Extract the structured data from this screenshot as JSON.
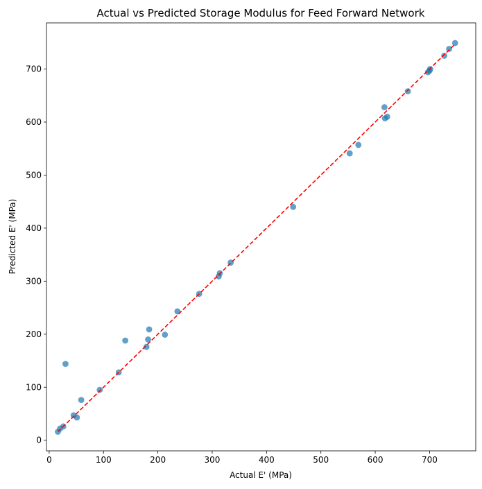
{
  "chart_data": {
    "type": "scatter",
    "title": "Actual vs Predicted Storage Modulus for Feed Forward Network",
    "xlabel": "Actual E' (MPa)",
    "ylabel": "Predicted E' (MPa)",
    "xlim": [
      -5,
      785
    ],
    "ylim": [
      -20,
      787
    ],
    "xticks": [
      0,
      100,
      200,
      300,
      400,
      500,
      600,
      700
    ],
    "yticks": [
      0,
      100,
      200,
      300,
      400,
      500,
      600,
      700
    ],
    "grid": false,
    "points": [
      {
        "x": 16,
        "y": 16
      },
      {
        "x": 20,
        "y": 22
      },
      {
        "x": 26,
        "y": 26
      },
      {
        "x": 30,
        "y": 144
      },
      {
        "x": 45,
        "y": 47
      },
      {
        "x": 51,
        "y": 43
      },
      {
        "x": 59,
        "y": 76
      },
      {
        "x": 93,
        "y": 95
      },
      {
        "x": 128,
        "y": 128
      },
      {
        "x": 140,
        "y": 188
      },
      {
        "x": 179,
        "y": 176
      },
      {
        "x": 182,
        "y": 190
      },
      {
        "x": 184,
        "y": 209
      },
      {
        "x": 213,
        "y": 199
      },
      {
        "x": 236,
        "y": 243
      },
      {
        "x": 276,
        "y": 276
      },
      {
        "x": 312,
        "y": 309
      },
      {
        "x": 314,
        "y": 315
      },
      {
        "x": 334,
        "y": 335
      },
      {
        "x": 449,
        "y": 440
      },
      {
        "x": 553,
        "y": 541
      },
      {
        "x": 569,
        "y": 557
      },
      {
        "x": 617,
        "y": 628
      },
      {
        "x": 618,
        "y": 607
      },
      {
        "x": 622,
        "y": 610
      },
      {
        "x": 660,
        "y": 658
      },
      {
        "x": 697,
        "y": 694
      },
      {
        "x": 700,
        "y": 697
      },
      {
        "x": 701,
        "y": 700
      },
      {
        "x": 727,
        "y": 725
      },
      {
        "x": 736,
        "y": 738
      },
      {
        "x": 747,
        "y": 749
      }
    ],
    "reference_line": {
      "x": [
        16,
        747
      ],
      "y": [
        16,
        747
      ]
    },
    "colors": {
      "points": "#1f77b4",
      "reference_line": "#ff0000"
    }
  }
}
